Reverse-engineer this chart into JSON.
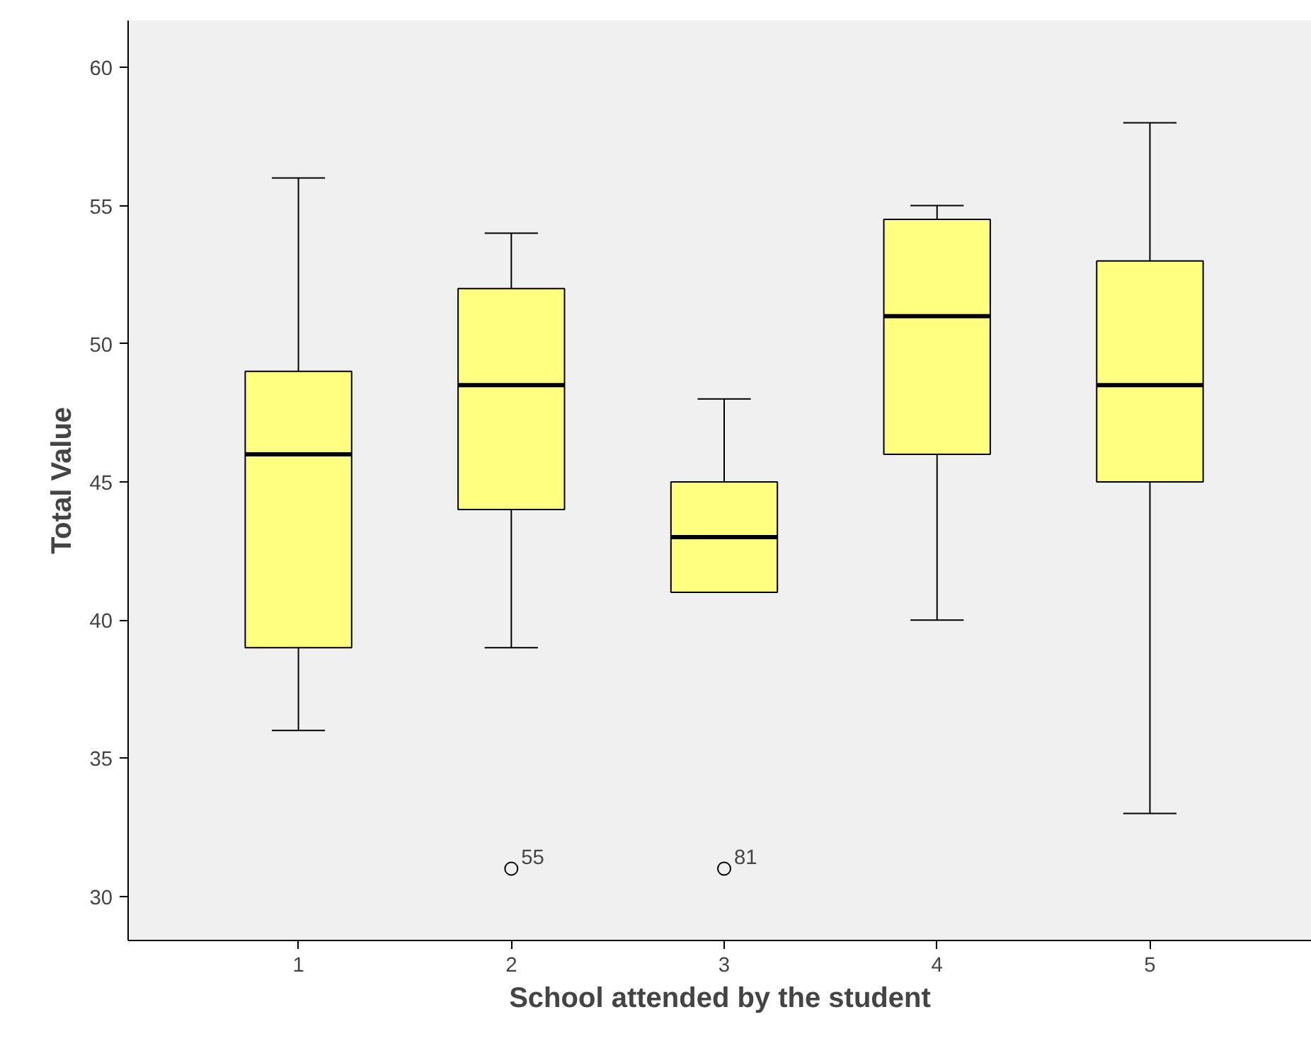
{
  "chart_data": {
    "type": "box",
    "xlabel": "School attended by the student",
    "ylabel": "Total Value",
    "categories": [
      "1",
      "2",
      "3",
      "4",
      "5"
    ],
    "boxes": [
      {
        "low": 36,
        "q1": 39,
        "median": 46,
        "q3": 49,
        "high": 56
      },
      {
        "low": 39,
        "q1": 44,
        "median": 48.5,
        "q3": 52,
        "high": 54,
        "outliers": [
          31
        ]
      },
      {
        "low": 41,
        "q1": 41,
        "median": 43,
        "q3": 45,
        "high": 48,
        "outliers": [
          31
        ]
      },
      {
        "low": 40,
        "q1": 46,
        "median": 51,
        "q3": 54.5,
        "high": 55
      },
      {
        "low": 33,
        "q1": 45,
        "median": 48.5,
        "q3": 53,
        "high": 58
      }
    ],
    "color": "#ffff80",
    "ylim": [
      28.4,
      61.7
    ],
    "yticks": [
      30,
      35,
      40,
      45,
      50,
      55,
      60
    ],
    "grid": false,
    "annotations": [
      "55",
      "81"
    ]
  }
}
